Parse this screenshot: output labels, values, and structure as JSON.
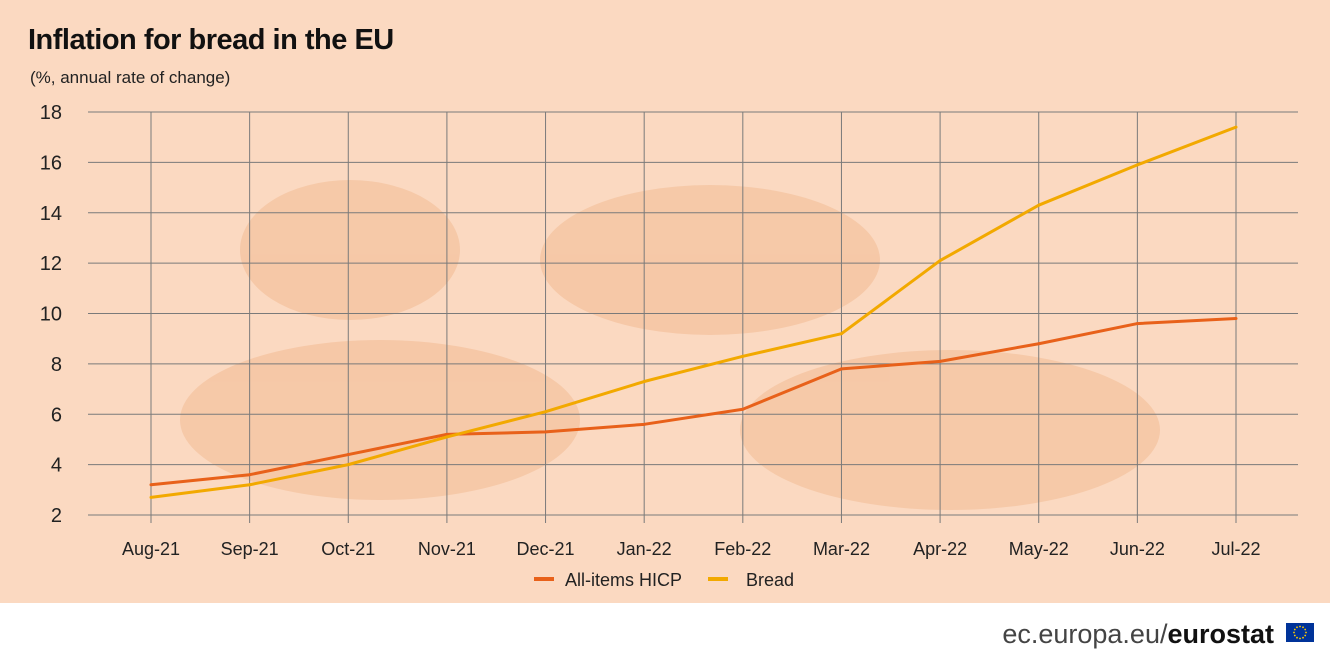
{
  "colors": {
    "background": "#fbd9c1",
    "grid": "#7a7a7a",
    "series_hicp": "#e8611a",
    "series_bread": "#f2a900",
    "decor": "#f4c29c"
  },
  "footer": {
    "domain": "ec.europa.eu/",
    "brand": "eurostat",
    "flag_icon": "eu-flag-icon"
  },
  "chart_data": {
    "type": "line",
    "title": "Inflation for bread in the EU",
    "subtitle": "(%, annual rate of change)",
    "xlabel": "",
    "ylabel": "",
    "ylim": [
      2,
      18
    ],
    "yticks": [
      2,
      4,
      6,
      8,
      10,
      12,
      14,
      16,
      18
    ],
    "grid": true,
    "legend_position": "bottom-center",
    "categories": [
      "Aug-21",
      "Sep-21",
      "Oct-21",
      "Nov-21",
      "Dec-21",
      "Jan-22",
      "Feb-22",
      "Mar-22",
      "Apr-22",
      "May-22",
      "Jun-22",
      "Jul-22"
    ],
    "series": [
      {
        "name": "All-items HICP",
        "color": "#e8611a",
        "values": [
          3.2,
          3.6,
          4.4,
          5.2,
          5.3,
          5.6,
          6.2,
          7.8,
          8.1,
          8.8,
          9.6,
          9.8
        ]
      },
      {
        "name": "Bread",
        "color": "#f2a900",
        "values": [
          2.7,
          3.2,
          4.0,
          5.1,
          6.1,
          7.3,
          8.3,
          9.2,
          12.1,
          14.3,
          15.9,
          17.4
        ]
      }
    ]
  }
}
